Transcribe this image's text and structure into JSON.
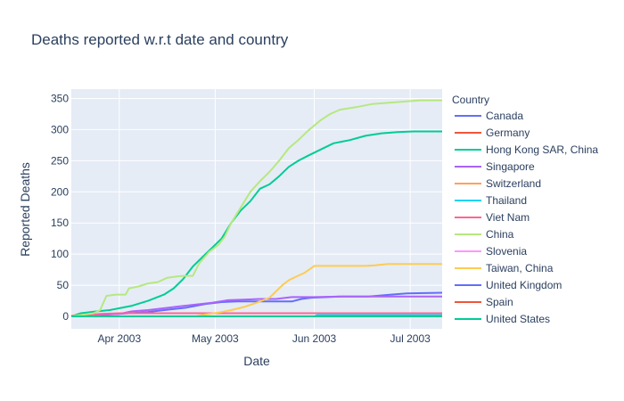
{
  "chart_data": {
    "type": "line",
    "title": "Deaths reported w.r.t date and country",
    "xlabel": "Date",
    "ylabel": "Reported Deaths",
    "legend_title": "Country",
    "legend_position": "right",
    "grid": true,
    "xlim": [
      "2003-03-17",
      "2003-07-11"
    ],
    "ylim": [
      -20,
      365
    ],
    "x_ticks": [
      {
        "date": "2003-04-01",
        "label": "Apr 2003"
      },
      {
        "date": "2003-05-01",
        "label": "May 2003"
      },
      {
        "date": "2003-06-01",
        "label": "Jun 2003"
      },
      {
        "date": "2003-07-01",
        "label": "Jul 2003"
      }
    ],
    "y_ticks": [
      0,
      50,
      100,
      150,
      200,
      250,
      300,
      350
    ],
    "series": [
      {
        "name": "Canada",
        "color": "#636efa",
        "points": [
          [
            "2003-03-17",
            0
          ],
          [
            "2003-03-24",
            2
          ],
          [
            "2003-04-01",
            4
          ],
          [
            "2003-04-10",
            7
          ],
          [
            "2003-04-15",
            10
          ],
          [
            "2003-04-22",
            14
          ],
          [
            "2003-04-28",
            20
          ],
          [
            "2003-05-03",
            23
          ],
          [
            "2003-05-08",
            24
          ],
          [
            "2003-05-20",
            24
          ],
          [
            "2003-05-25",
            24
          ],
          [
            "2003-05-28",
            28
          ],
          [
            "2003-05-31",
            30
          ],
          [
            "2003-06-05",
            31
          ],
          [
            "2003-06-10",
            32
          ],
          [
            "2003-06-18",
            32
          ],
          [
            "2003-06-25",
            35
          ],
          [
            "2003-06-30",
            37
          ],
          [
            "2003-07-11",
            38
          ]
        ]
      },
      {
        "name": "Germany",
        "color": "#ef553b",
        "points": [
          [
            "2003-03-17",
            0
          ],
          [
            "2003-07-11",
            0
          ]
        ]
      },
      {
        "name": "Hong Kong SAR, China",
        "color": "#00cc96",
        "points": [
          [
            "2003-03-17",
            0
          ],
          [
            "2003-03-20",
            5
          ],
          [
            "2003-03-25",
            8
          ],
          [
            "2003-03-29",
            10
          ],
          [
            "2003-04-01",
            13
          ],
          [
            "2003-04-05",
            17
          ],
          [
            "2003-04-10",
            25
          ],
          [
            "2003-04-15",
            35
          ],
          [
            "2003-04-18",
            45
          ],
          [
            "2003-04-21",
            60
          ],
          [
            "2003-04-24",
            80
          ],
          [
            "2003-04-27",
            95
          ],
          [
            "2003-04-30",
            110
          ],
          [
            "2003-05-03",
            125
          ],
          [
            "2003-05-06",
            150
          ],
          [
            "2003-05-09",
            170
          ],
          [
            "2003-05-12",
            185
          ],
          [
            "2003-05-15",
            205
          ],
          [
            "2003-05-18",
            212
          ],
          [
            "2003-05-21",
            225
          ],
          [
            "2003-05-24",
            240
          ],
          [
            "2003-05-27",
            250
          ],
          [
            "2003-05-30",
            258
          ],
          [
            "2003-06-03",
            268
          ],
          [
            "2003-06-07",
            278
          ],
          [
            "2003-06-12",
            283
          ],
          [
            "2003-06-17",
            290
          ],
          [
            "2003-06-22",
            294
          ],
          [
            "2003-06-27",
            296
          ],
          [
            "2003-07-02",
            297
          ],
          [
            "2003-07-11",
            297
          ]
        ]
      },
      {
        "name": "Singapore",
        "color": "#ab63fa",
        "points": [
          [
            "2003-03-17",
            0
          ],
          [
            "2003-03-25",
            2
          ],
          [
            "2003-04-01",
            4
          ],
          [
            "2003-04-05",
            8
          ],
          [
            "2003-04-10",
            10
          ],
          [
            "2003-04-15",
            13
          ],
          [
            "2003-04-20",
            16
          ],
          [
            "2003-04-25",
            19
          ],
          [
            "2003-04-30",
            22
          ],
          [
            "2003-05-05",
            26
          ],
          [
            "2003-05-10",
            27
          ],
          [
            "2003-05-15",
            28
          ],
          [
            "2003-05-20",
            28
          ],
          [
            "2003-05-25",
            31
          ],
          [
            "2003-06-01",
            31
          ],
          [
            "2003-06-10",
            32
          ],
          [
            "2003-06-20",
            32
          ],
          [
            "2003-07-11",
            32
          ]
        ]
      },
      {
        "name": "Switzerland",
        "color": "#ffa15a",
        "points": [
          [
            "2003-03-17",
            0
          ],
          [
            "2003-07-11",
            0
          ]
        ]
      },
      {
        "name": "Thailand",
        "color": "#19d3f3",
        "points": [
          [
            "2003-03-17",
            0
          ],
          [
            "2003-06-01",
            0
          ],
          [
            "2003-06-02",
            2
          ],
          [
            "2003-07-11",
            2
          ]
        ]
      },
      {
        "name": "Viet Nam",
        "color": "#ff6692",
        "points": [
          [
            "2003-03-17",
            1
          ],
          [
            "2003-03-22",
            2
          ],
          [
            "2003-03-26",
            4
          ],
          [
            "2003-04-01",
            5
          ],
          [
            "2003-07-11",
            5
          ]
        ]
      },
      {
        "name": "China",
        "color": "#b6e880",
        "points": [
          [
            "2003-03-17",
            0
          ],
          [
            "2003-03-24",
            5
          ],
          [
            "2003-03-26",
            10
          ],
          [
            "2003-03-28",
            33
          ],
          [
            "2003-03-31",
            35
          ],
          [
            "2003-04-03",
            35
          ],
          [
            "2003-04-04",
            45
          ],
          [
            "2003-04-07",
            48
          ],
          [
            "2003-04-10",
            53
          ],
          [
            "2003-04-13",
            55
          ],
          [
            "2003-04-16",
            62
          ],
          [
            "2003-04-19",
            64
          ],
          [
            "2003-04-21",
            65
          ],
          [
            "2003-04-24",
            65
          ],
          [
            "2003-04-26",
            85
          ],
          [
            "2003-04-29",
            103
          ],
          [
            "2003-05-02",
            115
          ],
          [
            "2003-05-04",
            128
          ],
          [
            "2003-05-06",
            150
          ],
          [
            "2003-05-09",
            175
          ],
          [
            "2003-05-12",
            200
          ],
          [
            "2003-05-15",
            217
          ],
          [
            "2003-05-18",
            232
          ],
          [
            "2003-05-21",
            250
          ],
          [
            "2003-05-24",
            270
          ],
          [
            "2003-05-27",
            283
          ],
          [
            "2003-05-30",
            298
          ],
          [
            "2003-06-03",
            315
          ],
          [
            "2003-06-06",
            325
          ],
          [
            "2003-06-09",
            332
          ],
          [
            "2003-06-14",
            336
          ],
          [
            "2003-06-19",
            341
          ],
          [
            "2003-06-24",
            343
          ],
          [
            "2003-06-29",
            345
          ],
          [
            "2003-07-04",
            347
          ],
          [
            "2003-07-11",
            347
          ]
        ]
      },
      {
        "name": "Slovenia",
        "color": "#ff97ff",
        "points": [
          [
            "2003-03-17",
            0
          ],
          [
            "2003-07-11",
            0
          ]
        ]
      },
      {
        "name": "Taiwan, China",
        "color": "#fecb52",
        "points": [
          [
            "2003-03-17",
            0
          ],
          [
            "2003-04-25",
            0
          ],
          [
            "2003-04-28",
            3
          ],
          [
            "2003-05-02",
            6
          ],
          [
            "2003-05-06",
            10
          ],
          [
            "2003-05-10",
            15
          ],
          [
            "2003-05-14",
            22
          ],
          [
            "2003-05-18",
            30
          ],
          [
            "2003-05-20",
            40
          ],
          [
            "2003-05-22",
            50
          ],
          [
            "2003-05-24",
            58
          ],
          [
            "2003-05-26",
            63
          ],
          [
            "2003-05-29",
            70
          ],
          [
            "2003-06-01",
            81
          ],
          [
            "2003-06-10",
            81
          ],
          [
            "2003-06-17",
            81
          ],
          [
            "2003-06-20",
            82
          ],
          [
            "2003-06-24",
            84
          ],
          [
            "2003-07-11",
            84
          ]
        ]
      },
      {
        "name": "United Kingdom",
        "color": "#636efa",
        "points": [
          [
            "2003-03-17",
            0
          ],
          [
            "2003-07-11",
            0
          ]
        ]
      },
      {
        "name": "Spain",
        "color": "#ef553b",
        "points": [
          [
            "2003-03-17",
            0
          ],
          [
            "2003-07-11",
            0
          ]
        ]
      },
      {
        "name": "United States",
        "color": "#00cc96",
        "points": [
          [
            "2003-03-17",
            0
          ],
          [
            "2003-07-11",
            0
          ]
        ]
      }
    ]
  }
}
